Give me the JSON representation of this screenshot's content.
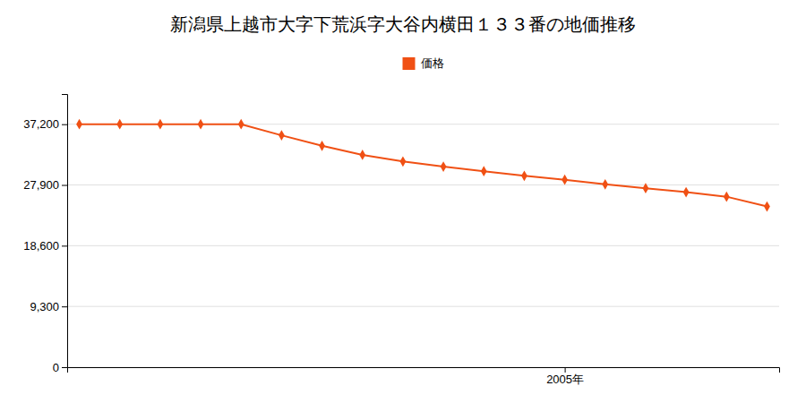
{
  "chart_data": {
    "type": "line",
    "title": "新潟県上越市大字下荒浜字大谷内横田１３３番の地価推移",
    "x": [
      1993,
      1994,
      1995,
      1996,
      1997,
      1998,
      1999,
      2000,
      2001,
      2002,
      2003,
      2004,
      2005,
      2006,
      2007,
      2008,
      2009,
      2010
    ],
    "series": [
      {
        "name": "価格",
        "color": "#f05014",
        "marker": "diamond",
        "values": [
          37200,
          37200,
          37200,
          37200,
          37200,
          35500,
          33900,
          32500,
          31500,
          30700,
          30000,
          29300,
          28700,
          28000,
          27400,
          26800,
          26100,
          24600
        ]
      }
    ],
    "xlim": [
      1992.7,
      2010.3
    ],
    "xticks": [
      {
        "value": 2005,
        "label": "2005年"
      }
    ],
    "ylim": [
      0,
      41820
    ],
    "yticks": [
      0,
      {
        "value": 9300,
        "label": "9,300"
      },
      {
        "value": 18600,
        "label": "18,600"
      },
      {
        "value": 27900,
        "label": "27,900"
      },
      {
        "value": 37200,
        "label": "37,200"
      }
    ],
    "grid": true,
    "legend": "top"
  }
}
